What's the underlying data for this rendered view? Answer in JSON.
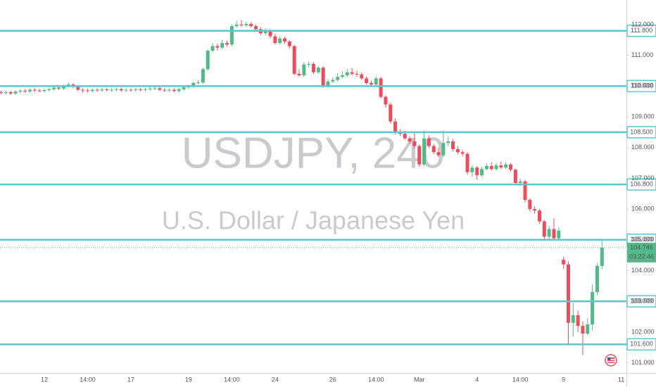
{
  "chart_data": {
    "type": "candlestick",
    "title": "USDJPY, 240",
    "subtitle": "U.S. Dollar / Japanese Yen",
    "categories": [
      null,
      null,
      null,
      null,
      null,
      null,
      null,
      null,
      null,
      "12",
      null,
      null,
      null,
      null,
      null,
      null,
      null,
      null,
      "14:00",
      null,
      null,
      null,
      null,
      null,
      null,
      null,
      null,
      "17",
      null,
      null,
      null,
      null,
      null,
      null,
      null,
      null,
      null,
      null,
      null,
      "19",
      null,
      null,
      null,
      null,
      null,
      null,
      null,
      null,
      "14:00",
      null,
      null,
      null,
      null,
      null,
      null,
      null,
      null,
      "24",
      null,
      null,
      null,
      null,
      null,
      null,
      null,
      null,
      null,
      null,
      null,
      "26",
      null,
      null,
      null,
      null,
      null,
      null,
      null,
      null,
      "14:00",
      null,
      null,
      null,
      null,
      null,
      null,
      null,
      null,
      "Mar",
      null,
      null,
      null,
      null,
      null,
      null,
      null,
      null,
      null,
      null,
      null,
      "4",
      null,
      null,
      null,
      null,
      null,
      null,
      null,
      null,
      "14:00",
      null,
      null,
      null,
      null,
      null,
      null,
      null,
      null,
      "9",
      null,
      null,
      null,
      null,
      null,
      null,
      null,
      null,
      null,
      null,
      null,
      "11",
      null
    ],
    "open": [
      109.8,
      109.78,
      109.8,
      109.76,
      109.82,
      109.85,
      109.83,
      109.88,
      109.86,
      109.84,
      109.87,
      109.9,
      109.95,
      109.92,
      110.0,
      110.05,
      109.98,
      109.88,
      109.86,
      109.84,
      109.88,
      109.86,
      109.89,
      109.87,
      109.88,
      109.9,
      109.86,
      109.88,
      109.87,
      109.89,
      109.88,
      109.9,
      109.92,
      109.93,
      109.88,
      109.86,
      109.88,
      109.84,
      109.9,
      109.96,
      110.0,
      110.1,
      110.12,
      110.55,
      111.15,
      111.3,
      111.25,
      111.4,
      111.35,
      111.95,
      112.0,
      111.98,
      112.02,
      111.95,
      111.85,
      111.72,
      111.8,
      111.62,
      111.4,
      111.55,
      111.45,
      111.3,
      110.4,
      110.35,
      110.7,
      110.72,
      110.45,
      110.6,
      110.0,
      110.15,
      110.2,
      110.3,
      110.35,
      110.45,
      110.4,
      110.38,
      110.25,
      110.1,
      110.05,
      110.25,
      109.65,
      109.4,
      108.85,
      108.5,
      108.45,
      108.3,
      108.2,
      108.05,
      107.45,
      108.3,
      108.05,
      107.85,
      107.75,
      108.15,
      108.2,
      107.95,
      107.85,
      107.8,
      107.2,
      107.35,
      107.1,
      107.3,
      107.4,
      107.3,
      107.42,
      107.35,
      107.45,
      107.28,
      106.85,
      106.9,
      106.3,
      106.0,
      105.95,
      105.6,
      105.1,
      105.35,
      105.05,
      104.35,
      104.2,
      102.3,
      102.55,
      102.2,
      101.95,
      102.25,
      103.3,
      104.15,
      null,
      null,
      null,
      null,
      null
    ],
    "high": [
      109.85,
      109.85,
      109.85,
      109.87,
      109.9,
      109.9,
      109.93,
      109.93,
      109.91,
      109.92,
      109.95,
      110.0,
      110.0,
      110.05,
      110.12,
      110.1,
      110.03,
      109.93,
      109.91,
      109.93,
      109.93,
      109.94,
      109.94,
      109.93,
      109.95,
      109.95,
      109.93,
      109.93,
      109.94,
      109.94,
      109.95,
      109.97,
      109.98,
      109.98,
      109.93,
      109.93,
      109.93,
      109.95,
      110.01,
      110.05,
      110.15,
      110.2,
      110.6,
      111.2,
      111.4,
      111.38,
      111.5,
      111.48,
      112.0,
      112.12,
      112.15,
      112.1,
      112.08,
      112.0,
      111.92,
      111.88,
      111.85,
      111.7,
      111.62,
      111.6,
      111.5,
      111.35,
      110.55,
      110.78,
      110.8,
      110.78,
      110.65,
      110.65,
      110.22,
      110.28,
      110.42,
      110.48,
      110.55,
      110.58,
      110.5,
      110.45,
      110.32,
      110.18,
      110.32,
      110.3,
      109.7,
      109.45,
      108.95,
      108.6,
      108.55,
      108.38,
      108.5,
      108.1,
      108.55,
      108.4,
      108.12,
      108.0,
      108.55,
      108.35,
      108.28,
      108.05,
      107.92,
      107.85,
      107.42,
      107.4,
      107.38,
      107.48,
      107.52,
      107.5,
      107.55,
      107.52,
      107.5,
      107.32,
      106.98,
      106.95,
      106.35,
      106.1,
      106.0,
      105.65,
      105.45,
      105.7,
      105.4,
      104.45,
      104.3,
      102.95,
      102.7,
      102.35,
      102.45,
      103.55,
      104.25,
      105.0,
      null,
      null,
      null,
      null,
      null
    ],
    "low": [
      109.73,
      109.73,
      109.71,
      109.71,
      109.77,
      109.78,
      109.78,
      109.81,
      109.79,
      109.79,
      109.82,
      109.85,
      109.87,
      109.87,
      109.95,
      109.93,
      109.83,
      109.78,
      109.79,
      109.79,
      109.81,
      109.81,
      109.82,
      109.82,
      109.83,
      109.81,
      109.81,
      109.82,
      109.82,
      109.83,
      109.83,
      109.85,
      109.87,
      109.83,
      109.81,
      109.81,
      109.79,
      109.79,
      109.85,
      109.91,
      109.95,
      110.05,
      110.07,
      110.5,
      111.1,
      111.15,
      111.2,
      111.28,
      111.3,
      111.9,
      111.92,
      111.93,
      111.9,
      111.8,
      111.66,
      111.65,
      111.55,
      111.35,
      111.35,
      111.38,
      111.22,
      110.35,
      110.3,
      110.3,
      110.6,
      110.4,
      110.4,
      109.95,
      109.95,
      110.1,
      110.15,
      110.25,
      110.3,
      110.35,
      110.3,
      110.2,
      110.05,
      109.98,
      110.0,
      109.6,
      109.3,
      108.78,
      108.42,
      108.38,
      108.25,
      108.12,
      107.98,
      107.38,
      107.4,
      107.98,
      107.78,
      107.68,
      107.7,
      108.05,
      107.88,
      107.78,
      107.72,
      107.12,
      107.05,
      106.95,
      107.05,
      107.25,
      107.25,
      107.25,
      107.3,
      107.3,
      107.22,
      106.78,
      106.75,
      106.22,
      105.92,
      105.85,
      105.52,
      105.02,
      105.0,
      104.98,
      105.0,
      104.05,
      101.6,
      101.85,
      102.0,
      101.25,
      101.9,
      102.05,
      103.2,
      104.05,
      null,
      null,
      null,
      null,
      null
    ],
    "close": [
      109.78,
      109.8,
      109.76,
      109.82,
      109.85,
      109.83,
      109.88,
      109.86,
      109.84,
      109.87,
      109.9,
      109.95,
      109.92,
      110.0,
      110.05,
      109.98,
      109.88,
      109.86,
      109.84,
      109.88,
      109.86,
      109.89,
      109.87,
      109.88,
      109.9,
      109.86,
      109.88,
      109.87,
      109.89,
      109.88,
      109.9,
      109.92,
      109.93,
      109.88,
      109.86,
      109.88,
      109.84,
      109.9,
      109.96,
      110.0,
      110.1,
      110.12,
      110.55,
      111.15,
      111.3,
      111.25,
      111.4,
      111.35,
      111.95,
      112.0,
      111.98,
      112.02,
      111.95,
      111.85,
      111.72,
      111.8,
      111.62,
      111.4,
      111.55,
      111.45,
      111.3,
      110.4,
      110.35,
      110.7,
      110.72,
      110.45,
      110.6,
      110.0,
      110.15,
      110.2,
      110.3,
      110.35,
      110.45,
      110.4,
      110.38,
      110.25,
      110.1,
      110.05,
      110.25,
      109.65,
      109.4,
      108.85,
      108.5,
      108.45,
      108.3,
      108.2,
      108.05,
      107.45,
      108.3,
      108.05,
      107.85,
      107.75,
      108.15,
      108.2,
      107.95,
      107.85,
      107.8,
      107.2,
      107.35,
      107.1,
      107.3,
      107.4,
      107.3,
      107.42,
      107.35,
      107.45,
      107.28,
      106.85,
      106.9,
      106.3,
      106.0,
      105.95,
      105.6,
      105.1,
      105.35,
      105.05,
      105.3,
      104.2,
      102.3,
      102.55,
      102.2,
      101.95,
      102.25,
      103.3,
      104.15,
      104.746,
      null,
      null,
      null,
      null,
      null
    ],
    "up_color": "#53b987",
    "down_color": "#eb4d5c",
    "ylim": [
      100.67,
      112.8
    ],
    "yticks": [
      {
        "value": 112,
        "label": "112.000"
      },
      {
        "value": 111,
        "label": "111.000"
      },
      {
        "value": 110,
        "label": "110.000"
      },
      {
        "value": 109,
        "label": "109.000"
      },
      {
        "value": 108,
        "label": "108.000"
      },
      {
        "value": 107,
        "label": "107.000"
      },
      {
        "value": 106,
        "label": "106.000"
      },
      {
        "value": 105,
        "label": "105.000"
      },
      {
        "value": 104,
        "label": "104.000"
      },
      {
        "value": 103,
        "label": "103.000"
      },
      {
        "value": 102,
        "label": "102.000"
      },
      {
        "value": 101,
        "label": "101.000"
      }
    ],
    "grid": false,
    "levels": [
      {
        "value": 111.8,
        "label": "111.800"
      },
      {
        "value": 110,
        "label": "110.000"
      },
      {
        "value": 108.5,
        "label": "108.500"
      },
      {
        "value": 106.8,
        "label": "106.800"
      },
      {
        "value": 105,
        "label": "105.000"
      },
      {
        "value": 103,
        "label": "103.000"
      },
      {
        "value": 101.6,
        "label": "101.600"
      }
    ],
    "level_color": "#5cc6cb",
    "last_price": 104.746,
    "countdown": "03:22:46"
  }
}
